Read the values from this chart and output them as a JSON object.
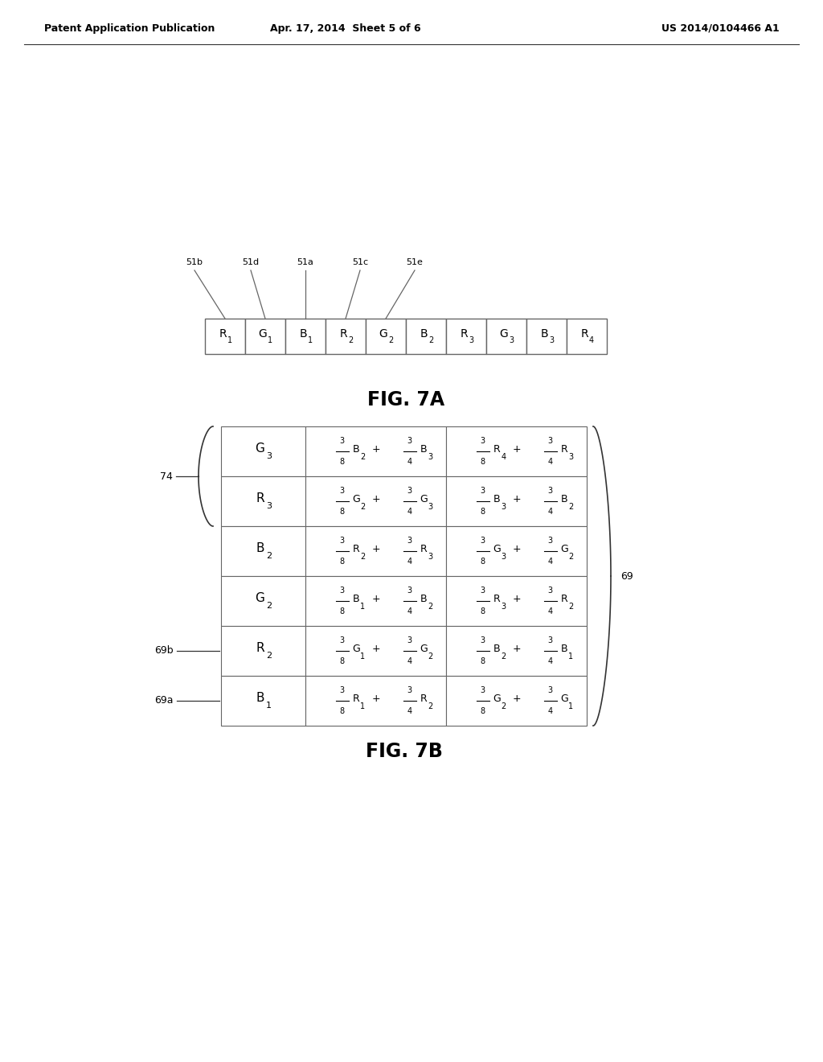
{
  "header_left": "Patent Application Publication",
  "header_center": "Apr. 17, 2014  Sheet 5 of 6",
  "header_right": "US 2014/0104466 A1",
  "fig7a_cells": [
    "R",
    "G",
    "B",
    "R",
    "G",
    "B",
    "R",
    "G",
    "B",
    "R"
  ],
  "fig7a_subs": [
    "1",
    "1",
    "1",
    "2",
    "2",
    "2",
    "3",
    "3",
    "3",
    "4"
  ],
  "fig7a_labels": [
    "51b",
    "51d",
    "51a",
    "51c",
    "51e"
  ],
  "fig7a_label_cell_idx": [
    0,
    1,
    2,
    3,
    4
  ],
  "fig7a_title": "FIG. 7A",
  "fig7b_title": "FIG. 7B",
  "fig7b_rows": [
    [
      "G",
      "3",
      "3/8 B2 + 3/4 B3",
      "3/8 R4 + 3/4 R3"
    ],
    [
      "R",
      "3",
      "3/8 G2 + 3/4 G3",
      "3/8 B3 + 3/4 B2"
    ],
    [
      "B",
      "2",
      "3/8 R2 + 3/4 R3",
      "3/8 G3 + 3/4 G2"
    ],
    [
      "G",
      "2",
      "3/8 B1 + 3/4 B2",
      "3/8 R3 + 3/4 R2"
    ],
    [
      "R",
      "2",
      "3/8 G1 + 3/4 G2",
      "3/8 B2 + 3/4 B1"
    ],
    [
      "B",
      "1",
      "3/8 R1 + 3/4 R2",
      "3/8 G2 + 3/4 G1"
    ]
  ],
  "fig7b_bracket_label": "69",
  "fig7b_label_74": "74",
  "fig7b_label_69b": "69b",
  "fig7b_label_69a": "69a",
  "background_color": "#ffffff",
  "line_color": "#333333",
  "text_color": "#000000"
}
